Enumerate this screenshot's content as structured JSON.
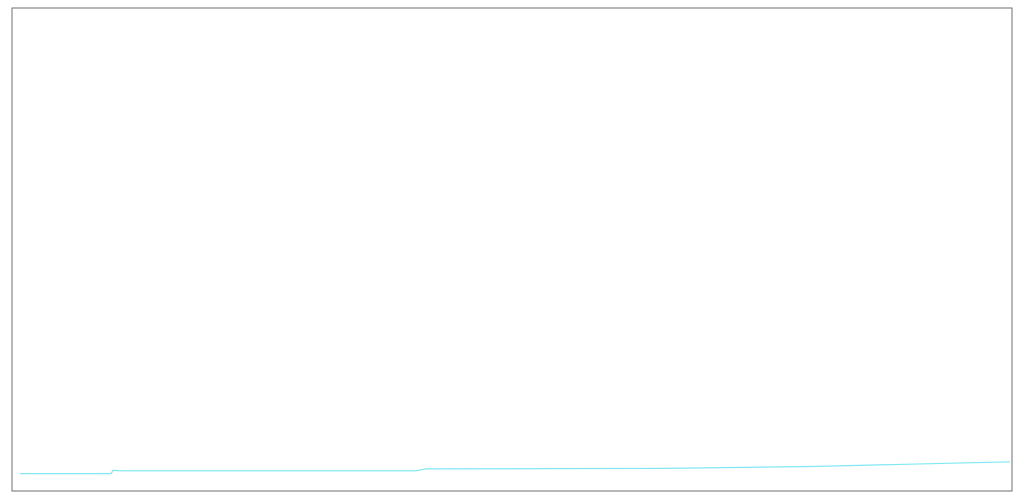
{
  "chart_data": {
    "type": "line",
    "grid": false,
    "xlim": [
      0,
      1
    ],
    "ylim": [
      0,
      1
    ],
    "series": [
      {
        "color": "#7fe8f2",
        "points": [
          [
            0.0,
            0.022
          ],
          [
            0.092,
            0.022
          ],
          [
            0.094,
            0.029
          ],
          [
            0.102,
            0.028
          ],
          [
            0.4,
            0.028
          ],
          [
            0.41,
            0.032
          ],
          [
            0.65,
            0.033
          ],
          [
            0.8,
            0.037
          ],
          [
            1.0,
            0.047
          ]
        ]
      }
    ]
  }
}
